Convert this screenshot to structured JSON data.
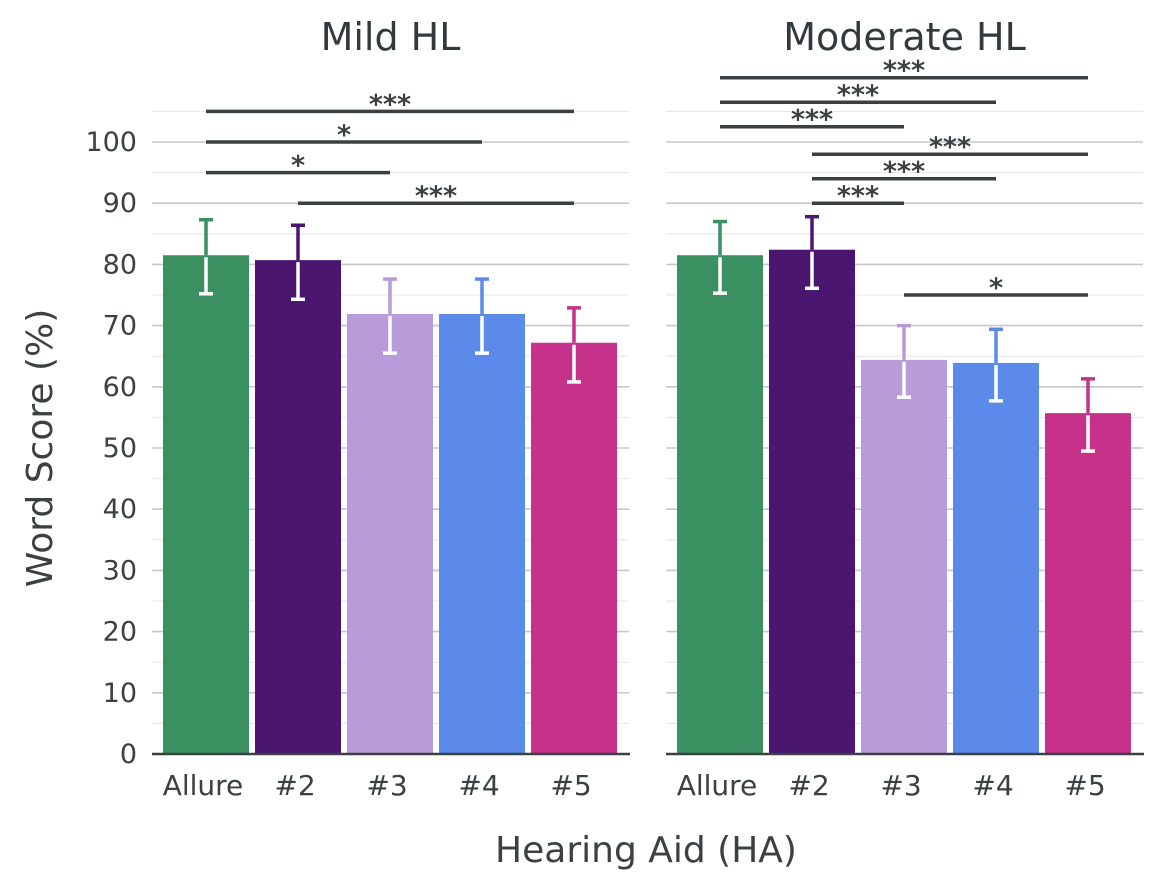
{
  "chart_data": {
    "type": "bar",
    "ylabel": "Word Score (%)",
    "xlabel": "Hearing Aid (HA)",
    "ylim": [
      0,
      105
    ],
    "yticks": [
      0,
      10,
      20,
      30,
      40,
      50,
      60,
      70,
      80,
      90,
      100
    ],
    "grid": true,
    "categories": [
      "Allure",
      "#2",
      "#3",
      "#4",
      "#5"
    ],
    "colors": [
      "#3a9060",
      "#4a1670",
      "#b89bd9",
      "#5b8aeb",
      "#c6328a"
    ],
    "panels": [
      {
        "title": "Mild HL",
        "values": [
          81.5,
          80.7,
          71.9,
          71.9,
          67.2
        ],
        "error_upper": [
          87.3,
          86.4,
          77.6,
          77.6,
          72.9
        ],
        "error_lower": [
          75.2,
          74.3,
          65.5,
          65.5,
          60.8
        ],
        "significance": [
          {
            "from": "Allure",
            "to": "#5",
            "level": 105,
            "label": "***"
          },
          {
            "from": "Allure",
            "to": "#4",
            "level": 100,
            "label": "*"
          },
          {
            "from": "Allure",
            "to": "#3",
            "level": 95,
            "label": "*"
          },
          {
            "from": "#2",
            "to": "#5",
            "level": 90,
            "label": "***"
          }
        ]
      },
      {
        "title": "Moderate HL",
        "values": [
          81.5,
          82.4,
          64.4,
          63.9,
          55.7
        ],
        "error_upper": [
          87.0,
          87.8,
          70.0,
          69.4,
          61.3
        ],
        "error_lower": [
          75.3,
          76.1,
          58.3,
          57.7,
          49.5
        ],
        "significance": [
          {
            "from": "Allure",
            "to": "#5",
            "level": 110.5,
            "label": "***"
          },
          {
            "from": "Allure",
            "to": "#4",
            "level": 106.5,
            "label": "***"
          },
          {
            "from": "Allure",
            "to": "#3",
            "level": 102.5,
            "label": "***"
          },
          {
            "from": "#2",
            "to": "#5",
            "level": 98,
            "label": "***"
          },
          {
            "from": "#2",
            "to": "#4",
            "level": 94,
            "label": "***"
          },
          {
            "from": "#2",
            "to": "#3",
            "level": 90,
            "label": "***"
          },
          {
            "from": "#3",
            "to": "#5",
            "level": 75,
            "label": "*"
          }
        ]
      }
    ]
  }
}
